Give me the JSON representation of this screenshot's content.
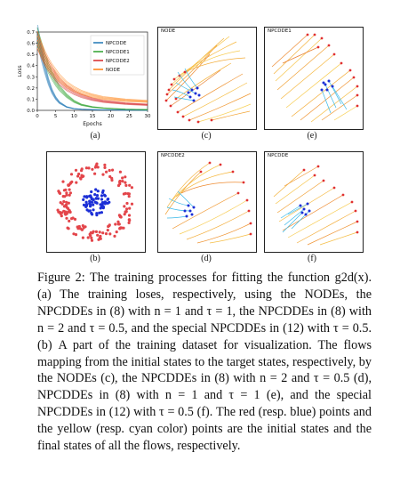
{
  "figure": {
    "subfigure_labels": {
      "a": "(a)",
      "b": "(b)",
      "c": "(c)",
      "d": "(d)",
      "e": "(e)",
      "f": "(f)"
    },
    "panel_titles": {
      "c": "NODE",
      "d": "NPCDDE2",
      "e": "NPCDDE1",
      "f": "NPCDDE"
    },
    "caption": "Figure 2: The training processes for fitting the function g2d(x). (a) The training loses, respectively, using the NODEs, the NPCDDEs in (8) with n = 1 and τ = 1, the NPCDDEs in (8) with n = 2 and τ = 0.5, and the special NPCDDEs in (12) with τ = 0.5. (b) A part of the training dataset for visualization. The flows mapping from the initial states to the target states, respectively, by the NODEs (c), the NPCDDEs in (8) with n = 2 and τ = 0.5 (d), NPCDDEs in (8) with n = 1 and τ = 1 (e), and the special NPCDDEs in (12) with τ = 0.5 (f). The red (resp. blue) points and the yellow (resp. cyan color) points are the initial states and the final states of all the flows, respectively."
  },
  "chart_data": {
    "type": "line",
    "title": "",
    "xlabel": "Epochs",
    "ylabel": "Loss",
    "xlim": [
      0,
      30
    ],
    "ylim": [
      0.0,
      0.7
    ],
    "xticks": [
      "0",
      "5",
      "10",
      "15",
      "20",
      "25",
      "30"
    ],
    "yticks": [
      "0.0",
      "0.1",
      "0.2",
      "0.3",
      "0.4",
      "0.5",
      "0.6",
      "0.7"
    ],
    "legend_position": "top-right",
    "series": [
      {
        "name": "NPCDDE",
        "color": "#1f77b4",
        "x": [
          0,
          1,
          2,
          3,
          4,
          5,
          6,
          8,
          10,
          12,
          15,
          18,
          21,
          24,
          27,
          30
        ],
        "y": [
          0.7,
          0.52,
          0.38,
          0.26,
          0.17,
          0.11,
          0.07,
          0.03,
          0.015,
          0.01,
          0.006,
          0.004,
          0.003,
          0.002,
          0.002,
          0.001
        ]
      },
      {
        "name": "NPCDDE1",
        "color": "#2ca02c",
        "x": [
          0,
          1,
          2,
          3,
          4,
          5,
          6,
          8,
          10,
          12,
          15,
          18,
          21,
          24,
          27,
          30
        ],
        "y": [
          0.66,
          0.56,
          0.46,
          0.38,
          0.31,
          0.25,
          0.2,
          0.13,
          0.08,
          0.05,
          0.03,
          0.02,
          0.015,
          0.01,
          0.008,
          0.006
        ]
      },
      {
        "name": "NPCDDE2",
        "color": "#d62728",
        "x": [
          0,
          1,
          2,
          3,
          4,
          5,
          6,
          8,
          10,
          12,
          15,
          18,
          21,
          24,
          27,
          30
        ],
        "y": [
          0.63,
          0.54,
          0.46,
          0.4,
          0.35,
          0.3,
          0.26,
          0.2,
          0.16,
          0.13,
          0.1,
          0.08,
          0.07,
          0.06,
          0.055,
          0.05
        ]
      },
      {
        "name": "NODE",
        "color": "#ff7f0e",
        "x": [
          0,
          1,
          2,
          3,
          4,
          5,
          6,
          8,
          10,
          12,
          15,
          18,
          21,
          24,
          27,
          30
        ],
        "y": [
          0.63,
          0.55,
          0.48,
          0.42,
          0.37,
          0.33,
          0.29,
          0.23,
          0.19,
          0.16,
          0.13,
          0.11,
          0.1,
          0.09,
          0.085,
          0.08
        ]
      }
    ]
  }
}
